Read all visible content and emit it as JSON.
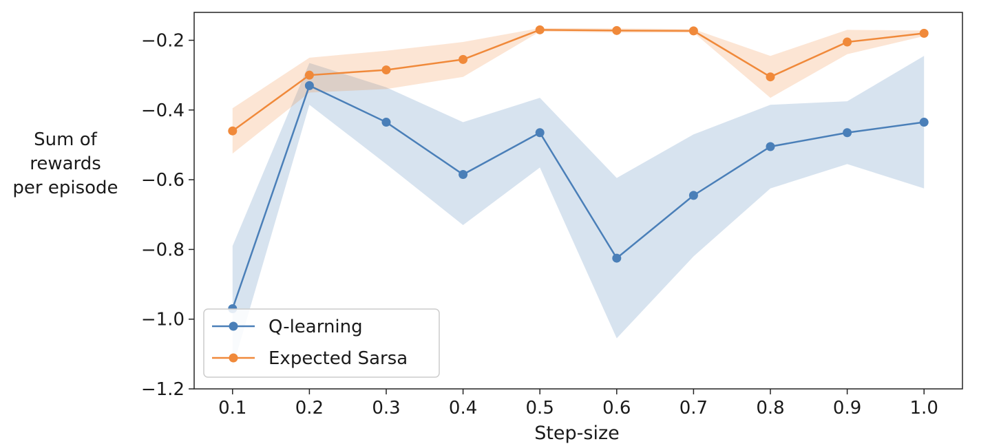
{
  "chart_data": {
    "type": "line",
    "title": "",
    "xlabel": "Step-size",
    "ylabel_lines": [
      "Sum of",
      "rewards",
      "per episode"
    ],
    "xlim": [
      0.05,
      1.05
    ],
    "ylim": [
      -1.2,
      -0.12
    ],
    "x_ticks": [
      0.1,
      0.2,
      0.3,
      0.4,
      0.5,
      0.6,
      0.7,
      0.8,
      0.9,
      1.0
    ],
    "x_tick_labels": [
      "0.1",
      "0.2",
      "0.3",
      "0.4",
      "0.5",
      "0.6",
      "0.7",
      "0.8",
      "0.9",
      "1.0"
    ],
    "y_ticks": [
      -1.2,
      -1.0,
      -0.8,
      -0.6,
      -0.4,
      -0.2
    ],
    "y_tick_labels": [
      "−1.2",
      "−1.0",
      "−0.8",
      "−0.6",
      "−0.4",
      "−0.2"
    ],
    "grid": false,
    "legend_position": "bottom-left",
    "x": [
      0.1,
      0.2,
      0.3,
      0.4,
      0.5,
      0.6,
      0.7,
      0.8,
      0.9,
      1.0
    ],
    "series": [
      {
        "name": "Q-learning",
        "color": "#4a7fb8",
        "values": [
          -0.97,
          -0.33,
          -0.435,
          -0.585,
          -0.465,
          -0.825,
          -0.645,
          -0.505,
          -0.465,
          -0.435
        ],
        "band_lower": [
          -1.14,
          -0.385,
          -0.555,
          -0.73,
          -0.565,
          -1.055,
          -0.82,
          -0.625,
          -0.555,
          -0.625
        ],
        "band_upper": [
          -0.79,
          -0.265,
          -0.335,
          -0.435,
          -0.365,
          -0.595,
          -0.47,
          -0.385,
          -0.375,
          -0.245
        ]
      },
      {
        "name": "Expected Sarsa",
        "color": "#f0893a",
        "values": [
          -0.46,
          -0.3,
          -0.285,
          -0.255,
          -0.17,
          -0.172,
          -0.173,
          -0.305,
          -0.205,
          -0.18
        ],
        "band_lower": [
          -0.525,
          -0.35,
          -0.34,
          -0.305,
          -0.175,
          -0.178,
          -0.178,
          -0.365,
          -0.24,
          -0.188
        ],
        "band_upper": [
          -0.395,
          -0.25,
          -0.23,
          -0.205,
          -0.165,
          -0.166,
          -0.168,
          -0.245,
          -0.17,
          -0.172
        ]
      }
    ]
  }
}
